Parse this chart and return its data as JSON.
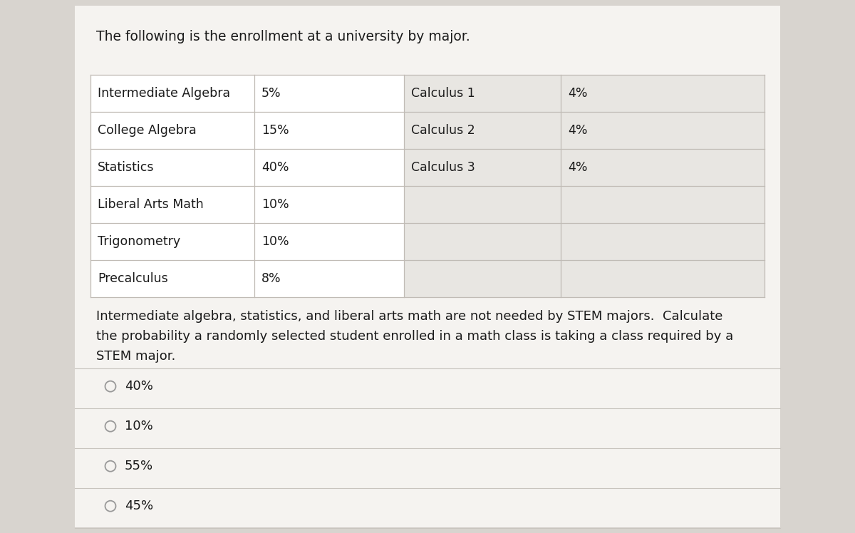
{
  "title_text": "The following is the enrollment at a university by major.",
  "table_left": [
    [
      "Intermediate Algebra",
      "5%"
    ],
    [
      "College Algebra",
      "15%"
    ],
    [
      "Statistics",
      "40%"
    ],
    [
      "Liberal Arts Math",
      "10%"
    ],
    [
      "Trigonometry",
      "10%"
    ],
    [
      "Precalculus",
      "8%"
    ]
  ],
  "table_right": [
    [
      "Calculus 1",
      "4%"
    ],
    [
      "Calculus 2",
      "4%"
    ],
    [
      "Calculus 3",
      "4%"
    ],
    [
      "",
      ""
    ],
    [
      "",
      ""
    ],
    [
      "",
      ""
    ]
  ],
  "body_text": "Intermediate algebra, statistics, and liberal arts math are not needed by STEM majors.  Calculate\nthe probability a randomly selected student enrolled in a math class is taking a class required by a\nSTEM major.",
  "options": [
    "40%",
    "10%",
    "55%",
    "45%"
  ],
  "bg_color": "#d8d4cf",
  "card_color": "#f5f3f0",
  "table_bg": "#ffffff",
  "table_right_fill": "#e8e6e2",
  "border_color": "#c0bbb5",
  "text_color": "#1a1a1a",
  "option_circle_color": "#999999",
  "separator_color": "#c8c4be",
  "font_size_title": 13.5,
  "font_size_table": 12.5,
  "font_size_body": 13,
  "font_size_option": 13
}
